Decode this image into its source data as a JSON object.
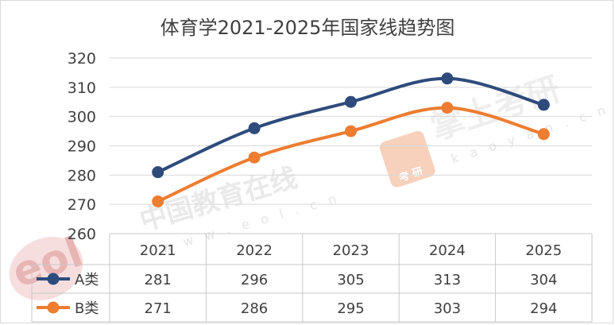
{
  "chart_data": {
    "type": "line",
    "title": "体育学2021-2025年国家线趋势图",
    "categories": [
      "2021",
      "2022",
      "2023",
      "2024",
      "2025"
    ],
    "series": [
      {
        "name": "A类",
        "color": "#2f4b7c",
        "values": [
          281,
          296,
          305,
          313,
          304
        ]
      },
      {
        "name": "B类",
        "color": "#ed7d31",
        "values": [
          271,
          286,
          295,
          303,
          294
        ]
      }
    ],
    "ylim": [
      260,
      320
    ],
    "yticks": [
      260,
      270,
      280,
      290,
      300,
      310,
      320
    ],
    "grid": true,
    "legend": "data table (bottom)"
  },
  "watermarks": {
    "eol_cn": "中国教育在线",
    "eol_url": "w w w . e o l . c n",
    "eol_logo": "eol",
    "kaoyan_brand": "掌上考研",
    "kaoyan_url": "k a o y a n . c n",
    "kaoyan_box": "考 研"
  }
}
